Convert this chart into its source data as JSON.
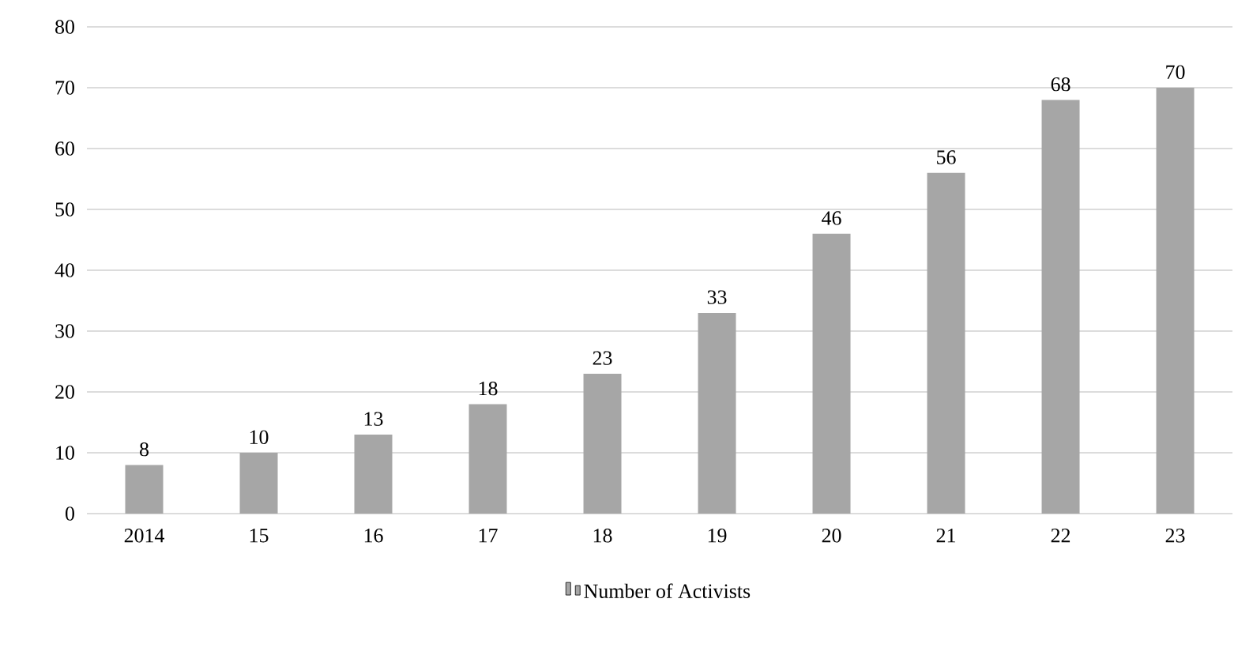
{
  "chart_data": {
    "type": "bar",
    "categories": [
      "2014",
      "15",
      "16",
      "17",
      "18",
      "19",
      "20",
      "21",
      "22",
      "23"
    ],
    "series": [
      {
        "name": "Number of Activists",
        "color": "#a6a6a6",
        "values": [
          8,
          10,
          13,
          18,
          23,
          33,
          46,
          56,
          68,
          70
        ]
      }
    ],
    "ylim": [
      0,
      80
    ],
    "yticks": [
      0,
      10,
      20,
      30,
      40,
      50,
      60,
      70,
      80
    ],
    "grid": "y",
    "legend": "bottom",
    "data_labels": true
  }
}
